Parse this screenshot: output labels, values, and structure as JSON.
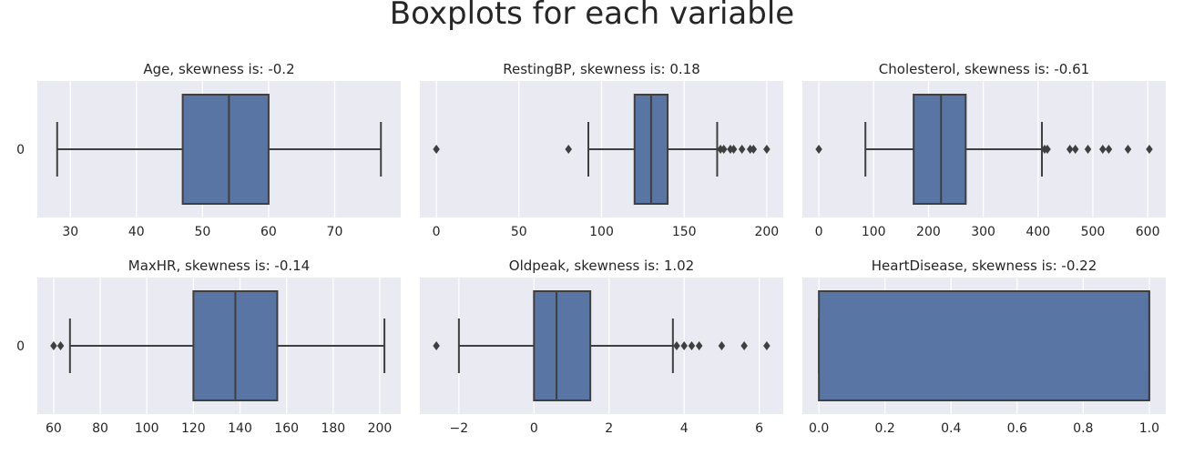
{
  "figure": {
    "title": "Boxplots for each variable"
  },
  "style": {
    "panel_bg": "#eaeaf2",
    "grid": "#ffffff",
    "box_fill": "#5875a4",
    "line": "#3f3f3f",
    "text": "#262626"
  },
  "chart_data": [
    {
      "type": "box",
      "orientation": "horizontal",
      "title": "Age, skewness is: -0.2",
      "category_label": "0",
      "xlim": [
        25,
        80
      ],
      "xticks": [
        30,
        40,
        50,
        60,
        70
      ],
      "xtick_labels": [
        "30",
        "40",
        "50",
        "60",
        "70"
      ],
      "box": {
        "whisker_low": 28,
        "q1": 47,
        "median": 54,
        "q3": 60,
        "whisker_high": 77,
        "outliers": []
      }
    },
    {
      "type": "box",
      "orientation": "horizontal",
      "title": "RestingBP, skewness is: 0.18",
      "category_label": "",
      "xlim": [
        -10,
        210
      ],
      "xticks": [
        0,
        50,
        100,
        150,
        200
      ],
      "xtick_labels": [
        "0",
        "50",
        "100",
        "150",
        "200"
      ],
      "box": {
        "whisker_low": 92,
        "q1": 120,
        "median": 130,
        "q3": 140,
        "whisker_high": 170,
        "outliers": [
          0,
          80,
          172,
          174,
          178,
          180,
          185,
          190,
          192,
          200
        ]
      }
    },
    {
      "type": "box",
      "orientation": "horizontal",
      "title": "Cholesterol, skewness is: -0.61",
      "category_label": "",
      "xlim": [
        -30,
        633
      ],
      "xticks": [
        0,
        100,
        200,
        300,
        400,
        500,
        600
      ],
      "xtick_labels": [
        "0",
        "100",
        "200",
        "300",
        "400",
        "500",
        "600"
      ],
      "box": {
        "whisker_low": 85,
        "q1": 173,
        "median": 223,
        "q3": 268,
        "whisker_high": 407,
        "outliers": [
          0,
          412,
          417,
          458,
          468,
          491,
          518,
          529,
          564,
          603
        ]
      }
    },
    {
      "type": "box",
      "orientation": "horizontal",
      "title": "MaxHR, skewness is: -0.14",
      "category_label": "0",
      "xlim": [
        53,
        209
      ],
      "xticks": [
        60,
        80,
        100,
        120,
        140,
        160,
        180,
        200
      ],
      "xtick_labels": [
        "60",
        "80",
        "100",
        "120",
        "140",
        "160",
        "180",
        "200"
      ],
      "box": {
        "whisker_low": 67,
        "q1": 120,
        "median": 138,
        "q3": 156,
        "whisker_high": 202,
        "outliers": [
          60,
          63
        ]
      }
    },
    {
      "type": "box",
      "orientation": "horizontal",
      "title": "Oldpeak, skewness is: 1.02",
      "category_label": "",
      "xlim": [
        -3.04,
        6.64
      ],
      "xticks": [
        -2,
        0,
        2,
        4,
        6
      ],
      "xtick_labels": [
        "−2",
        "0",
        "2",
        "4",
        "6"
      ],
      "box": {
        "whisker_low": -2.0,
        "q1": 0,
        "median": 0.6,
        "q3": 1.5,
        "whisker_high": 3.7,
        "outliers": [
          -2.6,
          3.8,
          4.0,
          4.2,
          4.4,
          5.0,
          5.6,
          6.2
        ]
      }
    },
    {
      "type": "box",
      "orientation": "horizontal",
      "title": "HeartDisease, skewness is: -0.22",
      "category_label": "",
      "xlim": [
        -0.05,
        1.05
      ],
      "xticks": [
        0.0,
        0.2,
        0.4,
        0.6,
        0.8,
        1.0
      ],
      "xtick_labels": [
        "0.0",
        "0.2",
        "0.4",
        "0.6",
        "0.8",
        "1.0"
      ],
      "box": {
        "whisker_low": 0,
        "q1": 0,
        "median": 1,
        "q3": 1,
        "whisker_high": 1,
        "outliers": []
      }
    }
  ]
}
